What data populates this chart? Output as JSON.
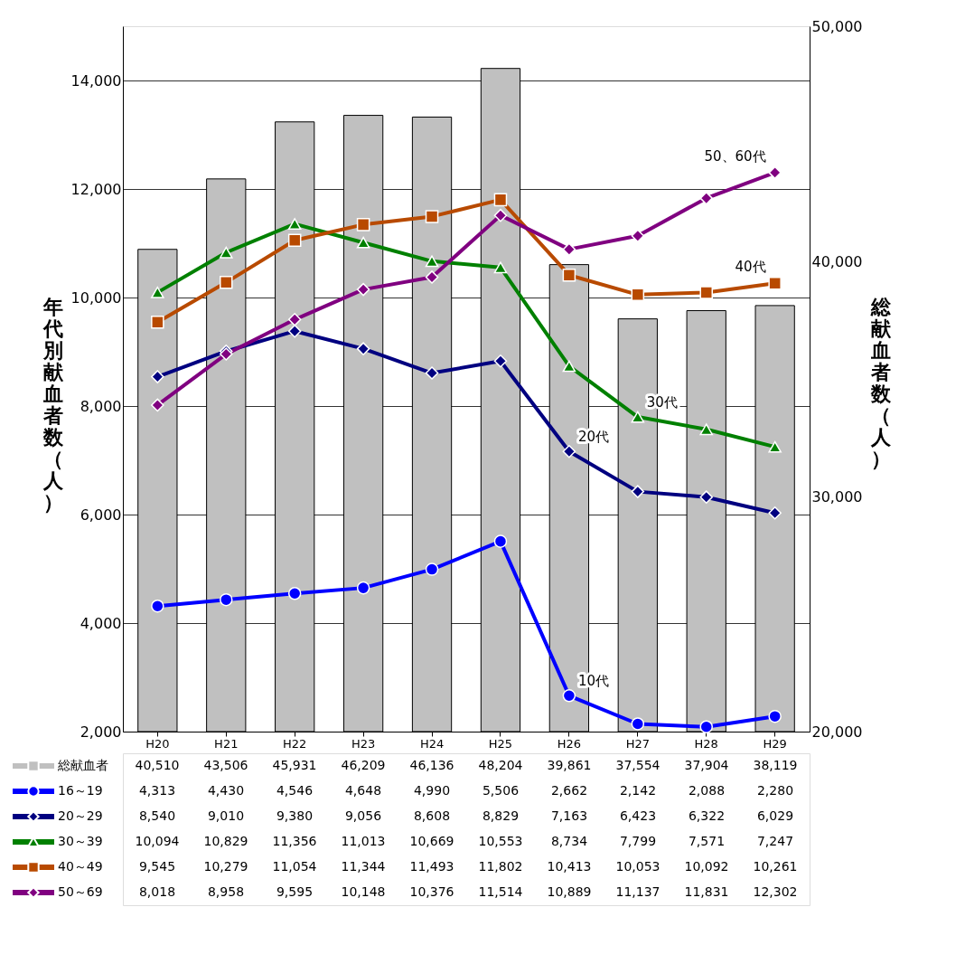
{
  "chart_data": {
    "type": "line",
    "categories": [
      "H20",
      "H21",
      "H22",
      "H23",
      "H24",
      "H25",
      "H26",
      "H27",
      "H28",
      "H29"
    ],
    "series": [
      {
        "name": "総献血者",
        "type": "bar",
        "axis": "y2",
        "color": "#c0c0c0",
        "values": [
          40510,
          43506,
          45931,
          46209,
          46136,
          48204,
          39861,
          37554,
          37904,
          38119
        ],
        "value_labels": [
          "40,510",
          "43,506",
          "45,931",
          "46,209",
          "46,136",
          "48,204",
          "39,861",
          "37,554",
          "37,904",
          "38,119"
        ]
      },
      {
        "name": "16～19",
        "color": "#0000ff",
        "marker": "circle",
        "values": [
          4313,
          4430,
          4546,
          4648,
          4990,
          5506,
          2662,
          2142,
          2088,
          2280
        ],
        "value_labels": [
          "4,313",
          "4,430",
          "4,546",
          "4,648",
          "4,990",
          "5,506",
          "2,662",
          "2,142",
          "2,088",
          "2,280"
        ]
      },
      {
        "name": "20～29",
        "color": "#000080",
        "marker": "diamond",
        "values": [
          8540,
          9010,
          9380,
          9056,
          8608,
          8829,
          7163,
          6423,
          6322,
          6029
        ],
        "value_labels": [
          "8,540",
          "9,010",
          "9,380",
          "9,056",
          "8,608",
          "8,829",
          "7,163",
          "6,423",
          "6,322",
          "6,029"
        ]
      },
      {
        "name": "30～39",
        "color": "#008000",
        "marker": "triangle",
        "values": [
          10094,
          10829,
          11356,
          11013,
          10669,
          10553,
          8734,
          7799,
          7571,
          7247
        ],
        "value_labels": [
          "10,094",
          "10,829",
          "11,356",
          "11,013",
          "10,669",
          "10,553",
          "8,734",
          "7,799",
          "7,571",
          "7,247"
        ]
      },
      {
        "name": "40～49",
        "color": "#b84a00",
        "marker": "square",
        "values": [
          9545,
          10279,
          11054,
          11344,
          11493,
          11802,
          10413,
          10053,
          10092,
          10261
        ],
        "value_labels": [
          "9,545",
          "10,279",
          "11,054",
          "11,344",
          "11,493",
          "11,802",
          "10,413",
          "10,053",
          "10,092",
          "10,261"
        ]
      },
      {
        "name": "50～69",
        "color": "#800080",
        "marker": "diamond",
        "values": [
          8018,
          8958,
          9595,
          10148,
          10376,
          11514,
          10889,
          11137,
          11831,
          12302
        ],
        "value_labels": [
          "8,018",
          "8,958",
          "9,595",
          "10,148",
          "10,376",
          "11,514",
          "10,889",
          "11,137",
          "11,831",
          "12,302"
        ]
      }
    ],
    "ylabel": "年代別献血者数（人）",
    "y2label": "総献血者数（人）",
    "ylim": [
      2000,
      15000
    ],
    "yticks": [
      {
        "value": 2000,
        "label": "2,000"
      },
      {
        "value": 4000,
        "label": "4,000"
      },
      {
        "value": 6000,
        "label": "6,000"
      },
      {
        "value": 8000,
        "label": "8,000"
      },
      {
        "value": 10000,
        "label": "10,000"
      },
      {
        "value": 12000,
        "label": "12,000"
      },
      {
        "value": 14000,
        "label": "14,000"
      }
    ],
    "y2lim": [
      20000,
      50000
    ],
    "y2ticks": [
      {
        "value": 20000,
        "label": "20,000"
      },
      {
        "value": 30000,
        "label": "30,000"
      },
      {
        "value": 40000,
        "label": "40,000"
      },
      {
        "value": 50000,
        "label": "50,000"
      }
    ],
    "annotations": [
      {
        "text": "50、60代",
        "x": "H29",
        "y": 12302
      },
      {
        "text": "40代",
        "x": "H29",
        "y": 10261
      },
      {
        "text": "30代",
        "x": "H27",
        "y": 7799
      },
      {
        "text": "20代",
        "x": "H26",
        "y": 7163
      },
      {
        "text": "10代",
        "x": "H26",
        "y": 2662
      }
    ],
    "grid": "y",
    "legend": "bottom"
  }
}
